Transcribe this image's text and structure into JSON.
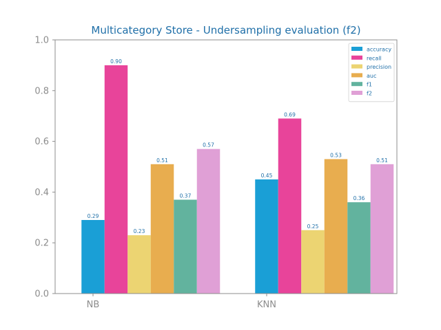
{
  "chart_data": {
    "type": "bar",
    "title": "Multicategory Store - Undersampling evaluation (f2)",
    "xlabel": "",
    "ylabel": "",
    "categories": [
      "NB",
      "KNN"
    ],
    "ylim": [
      0,
      1.0
    ],
    "yticks": [
      "0.0",
      "0.2",
      "0.4",
      "0.6",
      "0.8",
      "1.0"
    ],
    "legend_position": "top-right",
    "grid": false,
    "series": [
      {
        "name": "accuracy",
        "color": "#1a9fd6",
        "values": [
          0.29,
          0.45
        ],
        "labels": [
          "0.29",
          "0.45"
        ]
      },
      {
        "name": "recall",
        "color": "#e8449a",
        "values": [
          0.9,
          0.69
        ],
        "labels": [
          "0.90",
          "0.69"
        ]
      },
      {
        "name": "precision",
        "color": "#ecd472",
        "values": [
          0.23,
          0.25
        ],
        "labels": [
          "0.23",
          "0.25"
        ]
      },
      {
        "name": "auc",
        "color": "#e8ad4f",
        "values": [
          0.51,
          0.53
        ],
        "labels": [
          "0.51",
          "0.53"
        ]
      },
      {
        "name": "f1",
        "color": "#62b39e",
        "values": [
          0.37,
          0.36
        ],
        "labels": [
          "0.37",
          "0.36"
        ]
      },
      {
        "name": "f2",
        "color": "#e0a0d6",
        "values": [
          0.57,
          0.51
        ],
        "labels": [
          "0.57",
          "0.51"
        ]
      }
    ]
  }
}
